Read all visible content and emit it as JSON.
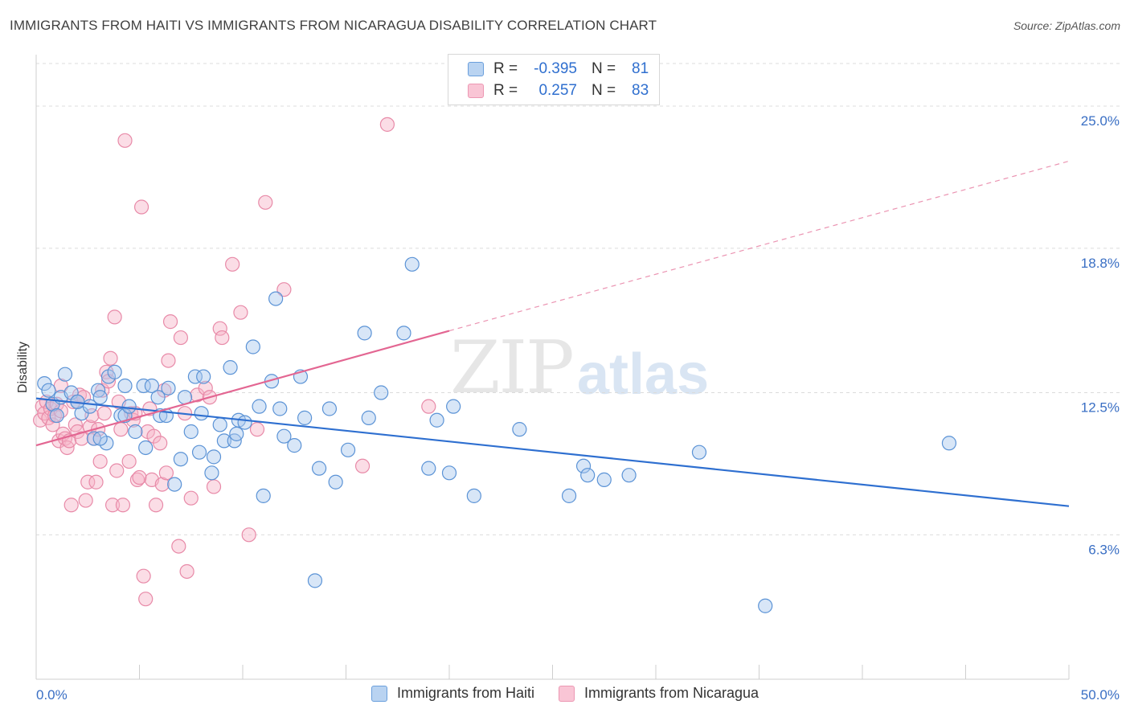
{
  "title": "IMMIGRANTS FROM HAITI VS IMMIGRANTS FROM NICARAGUA DISABILITY CORRELATION CHART",
  "source": "Source: ZipAtlas.com",
  "watermark": {
    "zip": "ZIP",
    "atlas": "atlas"
  },
  "legend": {
    "rows": [
      {
        "r_label": "R =",
        "r_value": "-0.395",
        "n_label": "N =",
        "n_value": "81"
      },
      {
        "r_label": "R =",
        "r_value": "0.257",
        "n_label": "N =",
        "n_value": "83"
      }
    ]
  },
  "bottom_legend": [
    "Immigrants from Haiti",
    "Immigrants from Nicaragua"
  ],
  "colors": {
    "haiti_fill": "#a9c8ee",
    "haiti_stroke": "#5b93d6",
    "haiti_line": "#2e6fd0",
    "nic_fill": "#f6b3c7",
    "nic_stroke": "#e88aa8",
    "nic_line": "#e36692",
    "axis_label": "#3a6fc4"
  },
  "chart_data": {
    "type": "scatter",
    "title": "IMMIGRANTS FROM HAITI VS IMMIGRANTS FROM NICARAGUA DISABILITY CORRELATION CHART",
    "xlabel": "",
    "ylabel": "Disability",
    "xlim": [
      0,
      50
    ],
    "ylim": [
      0,
      27
    ],
    "x_tick_labels": [
      "0.0%",
      "50.0%"
    ],
    "y_ticks": [
      6.3,
      12.5,
      18.8,
      25.0
    ],
    "y_tick_labels": [
      "6.3%",
      "12.5%",
      "18.8%",
      "25.0%"
    ],
    "grid": "horizontal dashed",
    "legend_position": "top-center",
    "series": [
      {
        "name": "Immigrants from Haiti",
        "trend": {
          "x": [
            0,
            50
          ],
          "y": [
            12.25,
            7.55
          ],
          "extend_to": 50
        },
        "points": [
          [
            0.4,
            12.9
          ],
          [
            0.6,
            12.6
          ],
          [
            0.8,
            12.0
          ],
          [
            1.2,
            12.3
          ],
          [
            1.4,
            13.3
          ],
          [
            1.7,
            12.5
          ],
          [
            2.0,
            12.1
          ],
          [
            2.2,
            11.6
          ],
          [
            2.6,
            11.9
          ],
          [
            2.8,
            10.5
          ],
          [
            3.0,
            12.6
          ],
          [
            3.1,
            12.3
          ],
          [
            3.4,
            10.3
          ],
          [
            3.5,
            13.2
          ],
          [
            3.8,
            13.4
          ],
          [
            4.1,
            11.5
          ],
          [
            4.3,
            11.5
          ],
          [
            4.3,
            12.8
          ],
          [
            4.5,
            11.9
          ],
          [
            4.8,
            10.8
          ],
          [
            5.2,
            12.8
          ],
          [
            5.3,
            10.1
          ],
          [
            5.6,
            12.8
          ],
          [
            5.9,
            12.3
          ],
          [
            6.0,
            11.5
          ],
          [
            6.3,
            11.5
          ],
          [
            6.4,
            12.7
          ],
          [
            6.7,
            8.5
          ],
          [
            7.0,
            9.6
          ],
          [
            7.2,
            12.3
          ],
          [
            7.5,
            10.8
          ],
          [
            7.7,
            13.2
          ],
          [
            7.9,
            9.9
          ],
          [
            8.0,
            11.6
          ],
          [
            8.1,
            13.2
          ],
          [
            8.5,
            9.0
          ],
          [
            8.6,
            9.7
          ],
          [
            8.9,
            11.1
          ],
          [
            9.1,
            10.4
          ],
          [
            9.4,
            13.6
          ],
          [
            9.6,
            10.4
          ],
          [
            9.7,
            10.7
          ],
          [
            9.8,
            11.3
          ],
          [
            10.1,
            11.2
          ],
          [
            10.5,
            14.5
          ],
          [
            10.8,
            11.9
          ],
          [
            11.0,
            8.0
          ],
          [
            11.4,
            13.0
          ],
          [
            11.6,
            16.6
          ],
          [
            11.8,
            11.8
          ],
          [
            12.0,
            10.6
          ],
          [
            12.5,
            10.2
          ],
          [
            12.8,
            13.2
          ],
          [
            13.0,
            11.4
          ],
          [
            13.7,
            9.2
          ],
          [
            14.2,
            11.8
          ],
          [
            14.5,
            8.6
          ],
          [
            15.1,
            10.0
          ],
          [
            15.9,
            15.1
          ],
          [
            16.1,
            11.4
          ],
          [
            16.7,
            12.5
          ],
          [
            17.8,
            15.1
          ],
          [
            18.2,
            18.1
          ],
          [
            19.0,
            9.2
          ],
          [
            19.4,
            11.3
          ],
          [
            20.0,
            9.0
          ],
          [
            20.2,
            11.9
          ],
          [
            21.2,
            8.0
          ],
          [
            23.4,
            10.9
          ],
          [
            25.8,
            8.0
          ],
          [
            26.5,
            9.3
          ],
          [
            26.7,
            8.9
          ],
          [
            27.5,
            8.7
          ],
          [
            28.7,
            8.9
          ],
          [
            32.1,
            9.9
          ],
          [
            35.3,
            3.2
          ],
          [
            44.2,
            10.3
          ],
          [
            13.5,
            4.3
          ],
          [
            3.1,
            10.5
          ],
          [
            2.0,
            12.1
          ],
          [
            1.0,
            11.5
          ]
        ]
      },
      {
        "name": "Immigrants from Nicaragua",
        "trend": {
          "x": [
            0,
            20,
            50
          ],
          "y": [
            10.2,
            15.2,
            22.6
          ],
          "solid_to": 20
        },
        "points": [
          [
            0.2,
            11.3
          ],
          [
            0.3,
            11.9
          ],
          [
            0.4,
            11.6
          ],
          [
            0.5,
            12.1
          ],
          [
            0.6,
            11.4
          ],
          [
            0.7,
            11.8
          ],
          [
            0.8,
            11.1
          ],
          [
            0.9,
            11.5
          ],
          [
            1.0,
            12.0
          ],
          [
            1.1,
            10.4
          ],
          [
            1.2,
            11.7
          ],
          [
            1.3,
            10.7
          ],
          [
            1.4,
            10.5
          ],
          [
            1.5,
            10.1
          ],
          [
            1.6,
            10.4
          ],
          [
            1.7,
            7.6
          ],
          [
            1.8,
            12.1
          ],
          [
            1.9,
            11.1
          ],
          [
            2.0,
            10.8
          ],
          [
            2.1,
            12.4
          ],
          [
            2.2,
            10.5
          ],
          [
            2.3,
            12.3
          ],
          [
            2.4,
            7.8
          ],
          [
            2.5,
            8.6
          ],
          [
            2.6,
            11.0
          ],
          [
            2.7,
            11.5
          ],
          [
            2.8,
            10.5
          ],
          [
            2.9,
            8.6
          ],
          [
            3.0,
            10.9
          ],
          [
            3.1,
            9.5
          ],
          [
            3.2,
            12.6
          ],
          [
            3.3,
            11.6
          ],
          [
            3.4,
            13.4
          ],
          [
            3.5,
            13.0
          ],
          [
            3.6,
            14.0
          ],
          [
            3.7,
            7.6
          ],
          [
            3.8,
            15.8
          ],
          [
            3.9,
            9.1
          ],
          [
            4.0,
            12.1
          ],
          [
            4.1,
            10.9
          ],
          [
            4.2,
            7.6
          ],
          [
            4.3,
            23.5
          ],
          [
            4.5,
            9.5
          ],
          [
            4.6,
            11.6
          ],
          [
            4.7,
            11.3
          ],
          [
            4.8,
            11.6
          ],
          [
            4.9,
            8.7
          ],
          [
            5.0,
            8.8
          ],
          [
            5.1,
            20.6
          ],
          [
            5.2,
            4.5
          ],
          [
            5.3,
            3.5
          ],
          [
            5.4,
            10.8
          ],
          [
            5.5,
            11.8
          ],
          [
            5.6,
            8.7
          ],
          [
            5.7,
            10.6
          ],
          [
            5.8,
            7.6
          ],
          [
            6.0,
            10.3
          ],
          [
            6.1,
            8.5
          ],
          [
            6.2,
            12.6
          ],
          [
            6.3,
            9.0
          ],
          [
            6.4,
            13.9
          ],
          [
            6.5,
            15.6
          ],
          [
            6.9,
            5.8
          ],
          [
            7.0,
            14.9
          ],
          [
            7.2,
            11.6
          ],
          [
            7.5,
            7.9
          ],
          [
            7.8,
            12.4
          ],
          [
            8.2,
            12.7
          ],
          [
            8.4,
            12.3
          ],
          [
            8.6,
            8.4
          ],
          [
            8.9,
            15.3
          ],
          [
            9.0,
            14.9
          ],
          [
            9.5,
            18.1
          ],
          [
            9.9,
            16.0
          ],
          [
            10.3,
            6.3
          ],
          [
            10.7,
            10.9
          ],
          [
            11.1,
            20.8
          ],
          [
            12.0,
            17.0
          ],
          [
            15.8,
            9.3
          ],
          [
            17.0,
            24.2
          ],
          [
            19.0,
            11.9
          ],
          [
            7.3,
            4.7
          ],
          [
            1.2,
            12.8
          ]
        ]
      }
    ]
  }
}
